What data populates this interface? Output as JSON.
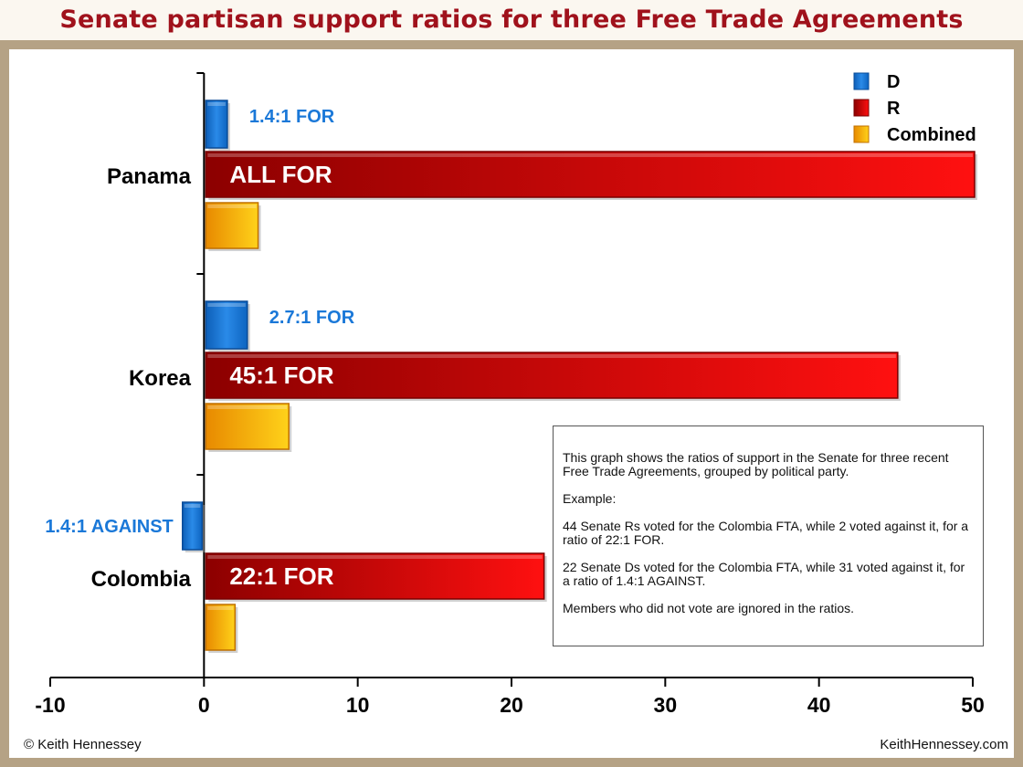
{
  "title": "Senate partisan support ratios for three Free Trade Agreements",
  "colors": {
    "D": "#1a78d8",
    "R": "#c81010",
    "Combined": "#f2a010",
    "title": "#a0121c",
    "frame": "#b5a285"
  },
  "chart_data": {
    "type": "bar",
    "orientation": "horizontal",
    "title": "Senate partisan support ratios for three Free Trade Agreements",
    "xlabel": "",
    "ylabel": "",
    "xlim": [
      -10,
      50
    ],
    "xticks": [
      -10,
      0,
      10,
      20,
      30,
      40,
      50
    ],
    "categories": [
      "Panama",
      "Korea",
      "Colombia"
    ],
    "series": [
      {
        "name": "D",
        "values": [
          1.4,
          2.7,
          -1.4
        ],
        "labels": [
          "1.4:1 FOR",
          "2.7:1 FOR",
          "1.4:1 AGAINST"
        ]
      },
      {
        "name": "R",
        "values": [
          50,
          45,
          22
        ],
        "labels": [
          "ALL FOR",
          "45:1 FOR",
          "22:1 FOR"
        ]
      },
      {
        "name": "Combined",
        "values": [
          3.4,
          5.4,
          1.9
        ],
        "labels": [
          "",
          "",
          ""
        ]
      }
    ],
    "legend_position": "top-right",
    "grid": false
  },
  "note": {
    "paragraphs": [
      "This graph shows the ratios of support in the Senate for three recent Free Trade Agreements, grouped by political party.",
      "Example:",
      "44 Senate Rs voted for the Colombia FTA, while 2 voted against it, for a ratio of 22:1 FOR.",
      "22 Senate Ds voted for the Colombia FTA, while 31 voted against it, for a ratio of 1.4:1 AGAINST.",
      "Members who did not vote are ignored in the ratios."
    ]
  },
  "footer": {
    "left": "© Keith Hennessey",
    "right": "KeithHennessey.com"
  }
}
